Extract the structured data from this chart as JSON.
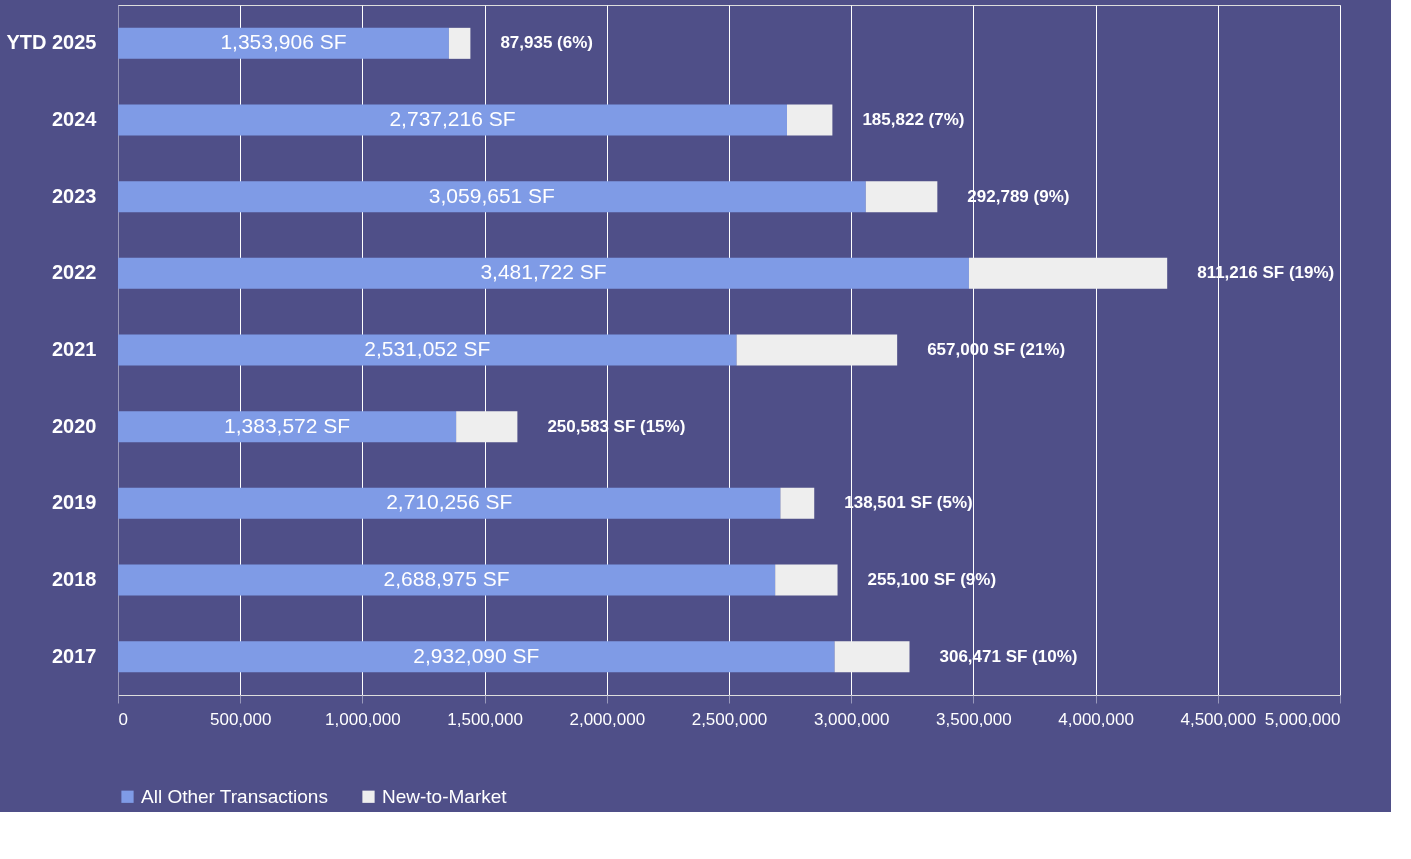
{
  "chart_data": {
    "type": "bar",
    "orientation": "horizontal",
    "stacked": true,
    "categories": [
      "YTD 2025",
      "2024",
      "2023",
      "2022",
      "2021",
      "2020",
      "2019",
      "2018",
      "2017"
    ],
    "series": [
      {
        "name": "All Other Transactions",
        "color": "#7f9be6",
        "values": [
          1353906,
          2737216,
          3059651,
          3481722,
          2531052,
          1383572,
          2710256,
          2688975,
          2932090
        ],
        "value_labels": [
          "1,353,906 SF",
          "2,737,216 SF",
          "3,059,651 SF",
          "3,481,722 SF",
          "2,531,052 SF",
          "1,383,572 SF",
          "2,710,256 SF",
          "2,688,975 SF",
          "2,932,090 SF"
        ]
      },
      {
        "name": "New-to-Market",
        "color": "#eeeeee",
        "values": [
          87935,
          185822,
          292789,
          811216,
          657000,
          250583,
          138501,
          255100,
          306471
        ],
        "value_labels": [
          "87,935 (6%)",
          "185,822 (7%)",
          "292,789 (9%)",
          "811,216 SF (19%)",
          "657,000 SF (21%)",
          "250,583 SF (15%)",
          "138,501 SF (5%)",
          "255,100 SF (9%)",
          "306,471 SF (10%)"
        ]
      }
    ],
    "xlim": [
      0,
      5000000
    ],
    "xticks": [
      0,
      {
        "value": 500000,
        "label": "500,000"
      },
      {
        "value": 1000000,
        "label": "1,000,000"
      },
      {
        "value": 1500000,
        "label": "1,500,000"
      },
      {
        "value": 2000000,
        "label": "2,000,000"
      },
      {
        "value": 2500000,
        "label": "2,500,000"
      },
      {
        "value": 3000000,
        "label": "3,000,000"
      },
      {
        "value": 3500000,
        "label": "3,500,000"
      },
      {
        "value": 4000000,
        "label": "4,000,000"
      },
      {
        "value": 4500000,
        "label": "4,500,000"
      },
      {
        "value": 5000000,
        "label": "5,000,000"
      }
    ],
    "grid": "x",
    "legend": "bottom"
  }
}
